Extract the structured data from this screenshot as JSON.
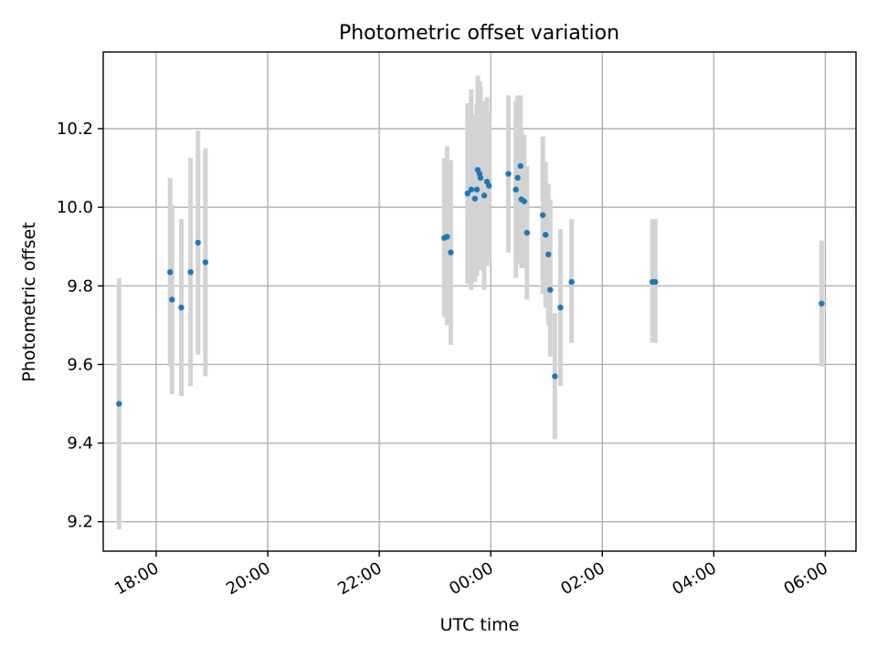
{
  "chart_data": {
    "type": "scatter",
    "title": "Photometric offset variation",
    "xlabel": "UTC time",
    "ylabel": "Photometric offset",
    "x_tick_labels": [
      "18:00",
      "20:00",
      "22:00",
      "00:00",
      "02:00",
      "04:00",
      "06:00"
    ],
    "y_tick_labels": [
      "9.2",
      "9.4",
      "9.6",
      "9.8",
      "10.0",
      "10.2"
    ],
    "x_ticks_hours": [
      18,
      20,
      22,
      24,
      26,
      28,
      30
    ],
    "y_ticks": [
      9.2,
      9.4,
      9.6,
      9.8,
      10.0,
      10.2
    ],
    "xlim_hours": [
      17.05,
      30.55
    ],
    "ylim": [
      9.125,
      10.395
    ],
    "grid": true,
    "colors": {
      "points": "#1f77b4",
      "errorbars": "#d3d3d3"
    },
    "points": [
      {
        "time": "17:20",
        "y": 9.5,
        "lo": 9.18,
        "hi": 9.82
      },
      {
        "time": "18:15",
        "y": 9.835,
        "lo": 9.595,
        "hi": 10.075
      },
      {
        "time": "18:17",
        "y": 9.765,
        "lo": 9.525,
        "hi": 10.005
      },
      {
        "time": "18:27",
        "y": 9.745,
        "lo": 9.52,
        "hi": 9.97
      },
      {
        "time": "18:37",
        "y": 9.835,
        "lo": 9.545,
        "hi": 10.125
      },
      {
        "time": "18:45",
        "y": 9.91,
        "lo": 9.625,
        "hi": 10.195
      },
      {
        "time": "18:53",
        "y": 9.86,
        "lo": 9.57,
        "hi": 10.15
      },
      {
        "time": "23:10",
        "y": 9.922,
        "lo": 9.72,
        "hi": 10.125
      },
      {
        "time": "23:13",
        "y": 9.925,
        "lo": 9.7,
        "hi": 10.155
      },
      {
        "time": "23:17",
        "y": 9.885,
        "lo": 9.65,
        "hi": 10.12
      },
      {
        "time": "23:35",
        "y": 10.035,
        "lo": 9.805,
        "hi": 10.265
      },
      {
        "time": "23:39",
        "y": 10.045,
        "lo": 9.79,
        "hi": 10.3
      },
      {
        "time": "23:43",
        "y": 10.022,
        "lo": 9.81,
        "hi": 10.235
      },
      {
        "time": "23:45",
        "y": 10.045,
        "lo": 9.825,
        "hi": 10.265
      },
      {
        "time": "23:46",
        "y": 10.095,
        "lo": 9.855,
        "hi": 10.335
      },
      {
        "time": "23:48",
        "y": 10.085,
        "lo": 9.85,
        "hi": 10.32
      },
      {
        "time": "23:49",
        "y": 10.075,
        "lo": 9.84,
        "hi": 10.31
      },
      {
        "time": "23:53",
        "y": 10.03,
        "lo": 9.79,
        "hi": 10.27
      },
      {
        "time": "23:56",
        "y": 10.065,
        "lo": 9.85,
        "hi": 10.28
      },
      {
        "time": "23:58",
        "y": 10.055,
        "lo": 9.87,
        "hi": 10.24
      },
      {
        "time": "00:19",
        "y": 10.085,
        "lo": 9.885,
        "hi": 10.285
      },
      {
        "time": "00:27",
        "y": 10.045,
        "lo": 9.82,
        "hi": 10.27
      },
      {
        "time": "00:29",
        "y": 10.075,
        "lo": 9.855,
        "hi": 10.285
      },
      {
        "time": "00:32",
        "y": 10.105,
        "lo": 9.925,
        "hi": 10.285
      },
      {
        "time": "00:33",
        "y": 10.02,
        "lo": 9.845,
        "hi": 10.195
      },
      {
        "time": "00:36",
        "y": 10.015,
        "lo": 9.845,
        "hi": 10.185
      },
      {
        "time": "00:39",
        "y": 9.935,
        "lo": 9.765,
        "hi": 10.105
      },
      {
        "time": "00:56",
        "y": 9.98,
        "lo": 9.78,
        "hi": 10.18
      },
      {
        "time": "00:59",
        "y": 9.93,
        "lo": 9.745,
        "hi": 10.115
      },
      {
        "time": "01:02",
        "y": 9.88,
        "lo": 9.7,
        "hi": 10.06
      },
      {
        "time": "01:04",
        "y": 9.79,
        "lo": 9.62,
        "hi": 10.02
      },
      {
        "time": "01:09",
        "y": 9.57,
        "lo": 9.41,
        "hi": 9.73
      },
      {
        "time": "01:15",
        "y": 9.745,
        "lo": 9.545,
        "hi": 9.945
      },
      {
        "time": "01:27",
        "y": 9.81,
        "lo": 9.655,
        "hi": 9.97
      },
      {
        "time": "02:54",
        "y": 9.81,
        "lo": 9.655,
        "hi": 9.97
      },
      {
        "time": "02:57",
        "y": 9.81,
        "lo": 9.655,
        "hi": 9.97
      },
      {
        "time": "05:56",
        "y": 9.755,
        "lo": 9.595,
        "hi": 9.915
      }
    ]
  }
}
